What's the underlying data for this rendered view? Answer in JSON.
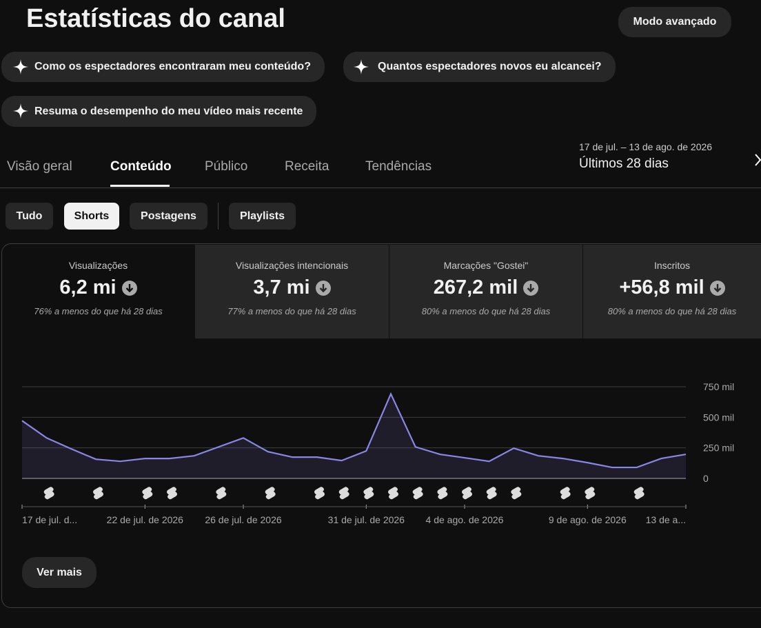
{
  "header": {
    "title": "Estatísticas do canal",
    "button": "Modo avançado"
  },
  "suggestions": [
    "Como os espectadores encontraram meu conteúdo?",
    "Quantos espectadores novos eu alcancei?",
    "Resuma o desempenho do meu vídeo mais recente"
  ],
  "tabs": [
    "Visão geral",
    "Conteúdo",
    "Público",
    "Receita",
    "Tendências"
  ],
  "date_range": {
    "dates": "17 de jul. – 13 de ago. de 2026",
    "label": "Últimos 28 dias"
  },
  "filters": [
    "Tudo",
    "Shorts",
    "Postagens",
    "Playlists"
  ],
  "metrics": [
    {
      "label": "Visualizações",
      "value": "6,2 mi",
      "note": "76% a menos do que há 28 dias"
    },
    {
      "label": "Visualizações intencionais",
      "value": "3,7 mi",
      "note": "77% a menos do que há 28 dias"
    },
    {
      "label": "Marcações \"Gostei\"",
      "value": "267,2 mil",
      "note": "80% a menos do que há 28 dias"
    },
    {
      "label": "Inscritos",
      "value": "+56,8 mil",
      "note": "80% a menos do que há 28 dias"
    }
  ],
  "chart_data": {
    "type": "line",
    "categories": [
      "17 de jul. d...",
      null,
      null,
      null,
      null,
      "22 de jul. de 2026",
      null,
      null,
      null,
      "26 de jul. de 2026",
      null,
      null,
      null,
      null,
      "31 de jul. de 2026",
      null,
      null,
      null,
      "4 de ago. de 2026",
      null,
      null,
      null,
      null,
      "9 de ago. de 2026",
      null,
      null,
      null,
      "13 de a..."
    ],
    "series": [
      {
        "name": "Visualizações",
        "color": "#8a86e6",
        "values": [
          472000,
          331000,
          242000,
          157000,
          140000,
          163000,
          163000,
          185000,
          258000,
          331000,
          219000,
          174000,
          174000,
          146000,
          225000,
          691000,
          258000,
          197000,
          169000,
          140000,
          247000,
          185000,
          163000,
          129000,
          90000,
          90000,
          163000,
          197000
        ]
      }
    ],
    "ylim": [
      0,
      750000
    ],
    "yticks": [
      0,
      {
        "value": 250000,
        "label": "250 mil"
      },
      {
        "value": 500000,
        "label": "500 mil"
      },
      {
        "value": 750000,
        "label": "750 mil"
      }
    ],
    "grid": true
  },
  "more_button": "Ver mais"
}
